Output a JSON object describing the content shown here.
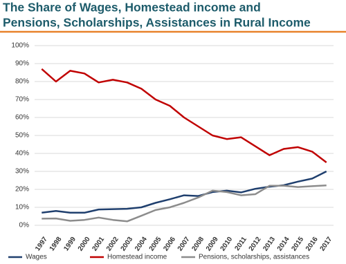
{
  "chart_data": {
    "type": "line",
    "title": [
      "The Share of Wages, Homestead income and",
      "Pensions, Scholarships, Assistances in Rural Income"
    ],
    "categories": [
      "1997",
      "1998",
      "1999",
      "2000",
      "2001",
      "2002",
      "2003",
      "2004",
      "2005",
      "2006",
      "2007",
      "2008",
      "2009",
      "2010",
      "2011",
      "2012",
      "2013",
      "2014",
      "2015",
      "2016",
      "2017"
    ],
    "series": [
      {
        "name": "Wages",
        "color": "#1f3f6e",
        "values": [
          7,
          8,
          7,
          7,
          8.8,
          9,
          9.2,
          10,
          12.5,
          14.5,
          16.7,
          16.3,
          18.5,
          19.3,
          18.3,
          20.3,
          21.5,
          22.3,
          24.3,
          26,
          30
        ]
      },
      {
        "name": "Homestead income",
        "color": "#c00000",
        "values": [
          87,
          80,
          86,
          84.5,
          79.5,
          81,
          79.5,
          76,
          70,
          66.5,
          60,
          55,
          50,
          48,
          49,
          44,
          39,
          42.5,
          43.5,
          41,
          35
        ]
      },
      {
        "name": "Pensions, scholarships, assistances",
        "color": "#8c8c8c",
        "values": [
          3.7,
          3.8,
          2.5,
          3,
          4.3,
          3,
          2.2,
          5.3,
          8.5,
          10,
          12.5,
          15.5,
          19.3,
          18.5,
          16.7,
          17.3,
          22,
          22,
          21.3,
          21.8,
          22.2
        ]
      }
    ],
    "ylim": [
      0,
      100
    ],
    "yticks": [
      {
        "value": 0,
        "label": "0%"
      },
      {
        "value": 10,
        "label": "10%"
      },
      {
        "value": 20,
        "label": "20%"
      },
      {
        "value": 30,
        "label": "30%"
      },
      {
        "value": 40,
        "label": "40%"
      },
      {
        "value": 50,
        "label": "50%"
      },
      {
        "value": 60,
        "label": "60%"
      },
      {
        "value": 70,
        "label": "70%"
      },
      {
        "value": 80,
        "label": "80%"
      },
      {
        "value": 90,
        "label": "90%"
      },
      {
        "value": 100,
        "label": "100%"
      }
    ],
    "grid": true,
    "legend": "bottom"
  }
}
